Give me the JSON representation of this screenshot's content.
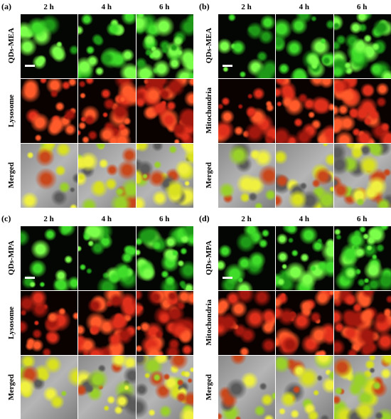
{
  "panels": [
    {
      "label": "(a)",
      "columns": [
        "2 h",
        "4 h",
        "6 h"
      ],
      "rows": [
        "QDs-MEA",
        "Lysosome",
        "Merged"
      ]
    },
    {
      "label": "(b)",
      "columns": [
        "2 h",
        "4 h",
        "6 h"
      ],
      "rows": [
        "QDs-MEA",
        "Mitochondria",
        "Merged"
      ]
    },
    {
      "label": "(c)",
      "columns": [
        "2 h",
        "4 h",
        "6 h"
      ],
      "rows": [
        "QDs-MPA",
        "Lysosome",
        "Merged"
      ]
    },
    {
      "label": "(d)",
      "columns": [
        "2 h",
        "4 h",
        "6 h"
      ],
      "rows": [
        "QDs-MPA",
        "Mitochondria",
        "Merged"
      ]
    }
  ]
}
